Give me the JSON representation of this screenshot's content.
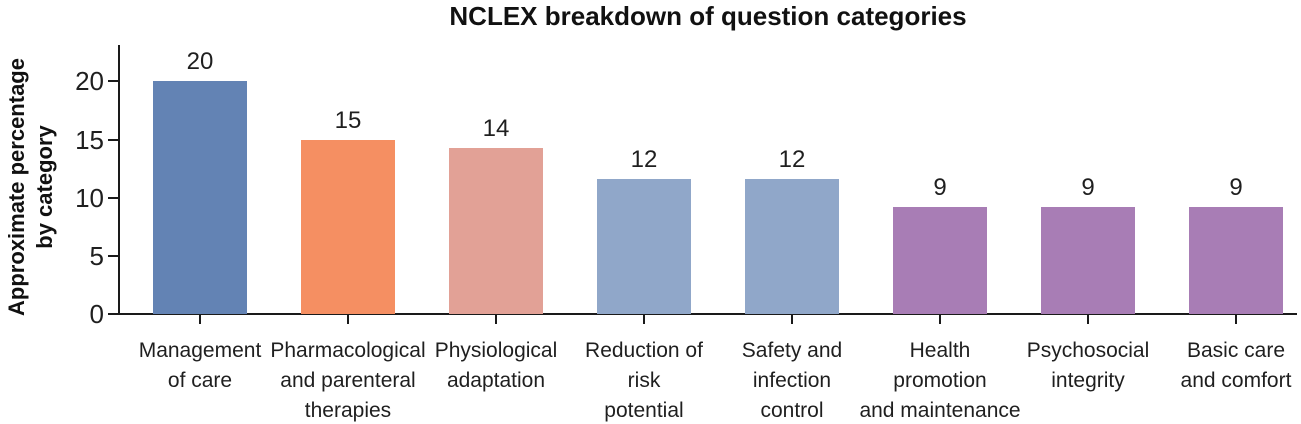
{
  "title": "NCLEX breakdown of question categories",
  "chart_data": {
    "type": "bar",
    "title": "NCLEX breakdown of question categories",
    "ylabel": "Approximate percentage by category",
    "ylabel_lines": [
      "Approximate percentage",
      "by category"
    ],
    "xlabel": "",
    "categories": [
      "Management of care",
      "Pharmacological and parenteral therapies",
      "Physiological adaptation",
      "Reduction of risk potential",
      "Safety and infection control",
      "Health promotion and maintenance",
      "Psychosocial integrity",
      "Basic care and comfort"
    ],
    "category_lines": [
      [
        "Management",
        "of care"
      ],
      [
        "Pharmacological",
        "and parenteral",
        "therapies"
      ],
      [
        "Physiological",
        "adaptation"
      ],
      [
        "Reduction of",
        "risk",
        "potential"
      ],
      [
        "Safety and",
        "infection",
        "control"
      ],
      [
        "Health",
        "promotion",
        "and maintenance"
      ],
      [
        "Psychosocial",
        "integrity"
      ],
      [
        "Basic care",
        "and comfort"
      ]
    ],
    "values": [
      20,
      15,
      14,
      12,
      12,
      9,
      9,
      9
    ],
    "plotted_values": [
      20,
      15,
      14.3,
      11.6,
      11.6,
      9.2,
      9.2,
      9.2
    ],
    "bar_colors": [
      "#6383b4",
      "#f58f62",
      "#e2a196",
      "#90a7c9",
      "#90a7c9",
      "#a87db5",
      "#a87db5",
      "#a87db5"
    ],
    "y_ticks": [
      0,
      5,
      10,
      15,
      20
    ],
    "ylim": [
      0,
      23.2
    ],
    "grid": false,
    "legend_position": "none",
    "axis_color": "#1a1a1a",
    "text_color": "#1f1f1f",
    "background_color": "#ffffff"
  }
}
